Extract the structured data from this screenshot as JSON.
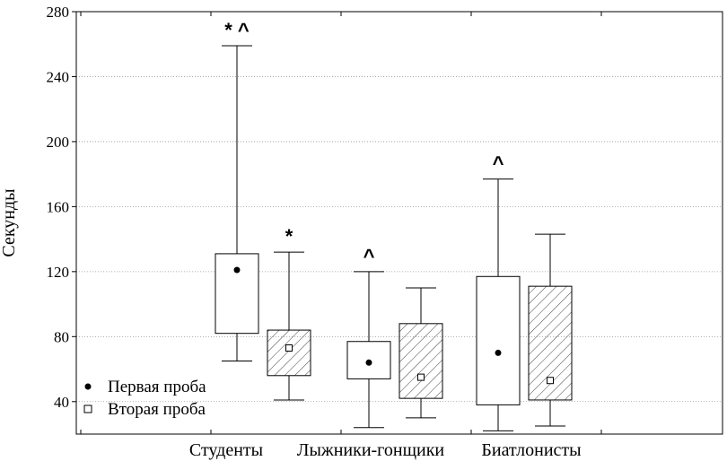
{
  "chart_data": {
    "type": "box",
    "ylabel": "Секунды",
    "xlabel": "",
    "ylim": [
      20,
      280
    ],
    "yticks": [
      40,
      80,
      120,
      160,
      200,
      240,
      280
    ],
    "grid": true,
    "legend_position": "bottom-left",
    "categories": [
      "Студенты",
      "Лыжники-гонщики",
      "Биатлонисты"
    ],
    "series": [
      {
        "name": "Первая проба",
        "marker": "filled-circle",
        "fill": "none",
        "boxes": [
          {
            "category": "Студенты",
            "whisker_low": 65,
            "q1": 82,
            "median": 121,
            "q3": 131,
            "whisker_high": 259,
            "annotation": "* ^"
          },
          {
            "category": "Лыжники-гонщики",
            "whisker_low": 24,
            "q1": 54,
            "median": 64,
            "q3": 77,
            "whisker_high": 120,
            "annotation": "^"
          },
          {
            "category": "Биатлонисты",
            "whisker_low": 22,
            "q1": 38,
            "median": 70,
            "q3": 117,
            "whisker_high": 177,
            "annotation": "^"
          }
        ]
      },
      {
        "name": "Вторая проба",
        "marker": "open-square",
        "fill": "hatched",
        "boxes": [
          {
            "category": "Студенты",
            "whisker_low": 41,
            "q1": 56,
            "median": 73,
            "q3": 84,
            "whisker_high": 132,
            "annotation": "*"
          },
          {
            "category": "Лыжники-гонщики",
            "whisker_low": 30,
            "q1": 42,
            "median": 55,
            "q3": 88,
            "whisker_high": 110,
            "annotation": ""
          },
          {
            "category": "Биатлонисты",
            "whisker_low": 25,
            "q1": 41,
            "median": 53,
            "q3": 111,
            "whisker_high": 143,
            "annotation": ""
          }
        ]
      }
    ]
  }
}
